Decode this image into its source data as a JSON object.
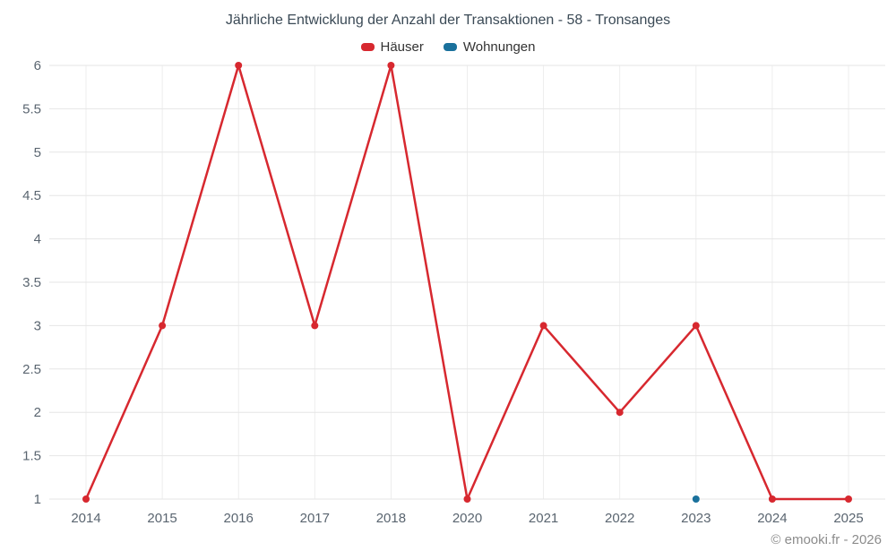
{
  "chart_data": {
    "type": "line",
    "title": "Jährliche Entwicklung der Anzahl der Transaktionen - 58 - Tronsanges",
    "categories": [
      "2014",
      "2015",
      "2016",
      "2017",
      "2018",
      "2020",
      "2021",
      "2022",
      "2023",
      "2024",
      "2025"
    ],
    "series": [
      {
        "name": "Häuser",
        "color": "#d7282f",
        "values": [
          1,
          3,
          6,
          3,
          6,
          1,
          3,
          2,
          3,
          1,
          1
        ]
      },
      {
        "name": "Wohnungen",
        "color": "#1a719c",
        "values": [
          null,
          null,
          null,
          null,
          null,
          null,
          null,
          null,
          1,
          null,
          null
        ]
      }
    ],
    "ylim": [
      1,
      6
    ],
    "y_ticks": [
      1,
      1.5,
      2,
      2.5,
      3,
      3.5,
      4,
      4.5,
      5,
      5.5,
      6
    ],
    "grid": true,
    "legend_position": "top",
    "footer": "© emooki.fr - 2026"
  },
  "colors": {
    "grid_horizontal": "#e6e6e6",
    "grid_vertical": "#ededed",
    "axis_label": "#5a6570",
    "title": "#3b4a56"
  }
}
